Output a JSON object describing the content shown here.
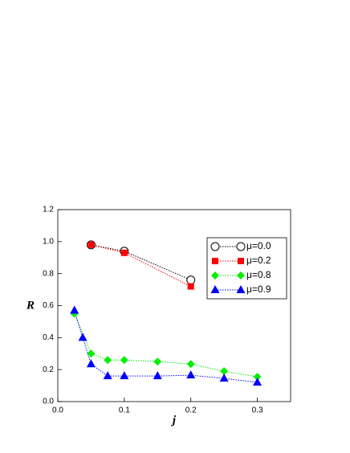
{
  "chart_data": {
    "type": "line",
    "x_label": "j",
    "y_label": "R",
    "xlim": [
      0,
      0.35
    ],
    "ylim": [
      0,
      1.2
    ],
    "xticks": [
      {
        "value": 0,
        "label": "0.0"
      },
      {
        "value": 0.1,
        "label": "0.1"
      },
      {
        "value": 0.2,
        "label": "0.2"
      },
      {
        "value": 0.3,
        "label": "0.3"
      }
    ],
    "yticks": [
      {
        "value": 0,
        "label": "0.0"
      },
      {
        "value": 0.2,
        "label": "0.2"
      },
      {
        "value": 0.4,
        "label": "0.4"
      },
      {
        "value": 0.6,
        "label": "0.6"
      },
      {
        "value": 0.8,
        "label": "0.8"
      },
      {
        "value": 1,
        "label": "1.0"
      },
      {
        "value": 1.2,
        "label": "1.2"
      }
    ],
    "legend": "upper right",
    "series": [
      {
        "name": "μ=0.0",
        "color": "#000000",
        "marker": "circle-open",
        "x": [
          0.05,
          0.1,
          0.2
        ],
        "values": [
          0.98,
          0.94,
          0.76
        ]
      },
      {
        "name": "μ=0.2",
        "color": "#ff0000",
        "marker": "square",
        "x": [
          0.05,
          0.1,
          0.2
        ],
        "values": [
          0.98,
          0.93,
          0.72
        ]
      },
      {
        "name": "μ=0.8",
        "color": "#00ee00",
        "marker": "diamond",
        "x": [
          0.025,
          0.05,
          0.075,
          0.1,
          0.15,
          0.2,
          0.25,
          0.3
        ],
        "values": [
          0.55,
          0.3,
          0.26,
          0.26,
          0.25,
          0.235,
          0.19,
          0.155
        ]
      },
      {
        "name": "μ=0.9",
        "color": "#0000ff",
        "marker": "triangle",
        "x": [
          0.025,
          0.0375,
          0.05,
          0.075,
          0.1,
          0.15,
          0.2,
          0.25,
          0.3
        ],
        "values": [
          0.57,
          0.4,
          0.235,
          0.16,
          0.16,
          0.16,
          0.165,
          0.145,
          0.12
        ]
      }
    ]
  }
}
